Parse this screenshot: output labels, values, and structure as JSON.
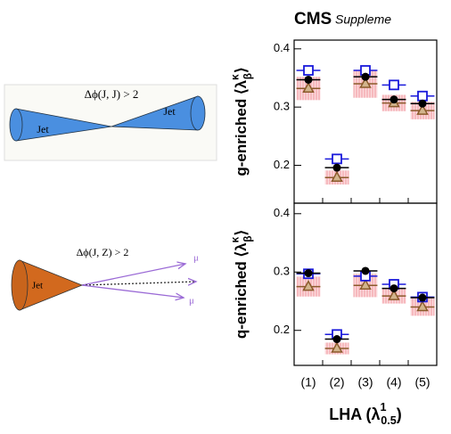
{
  "chart_data": [
    {
      "type": "errorbar",
      "title": "CMS",
      "subtitle": "Suppleme",
      "ylabel": [
        "g-enriched ⟨λ",
        "κ",
        "β",
        "⟩"
      ],
      "categories": [
        null,
        null,
        null,
        null,
        null
      ],
      "ylim": [
        0.135,
        0.415
      ],
      "yticks": [
        0.2,
        0.3,
        0.4
      ],
      "series": [
        {
          "marker": "band",
          "color": "#f2a0a6",
          "values": [
            0.332,
            0.179,
            0.34,
            0.307,
            0.294
          ],
          "errors": [
            0.02,
            0.012,
            0.024,
            0.014,
            0.015
          ]
        },
        {
          "marker": "triangle",
          "color": "#8b5a2b",
          "values": [
            0.332,
            0.179,
            0.34,
            0.307,
            0.294
          ]
        },
        {
          "marker": "square",
          "color": "#1a1adb",
          "values": [
            0.363,
            0.211,
            0.363,
            0.338,
            0.319
          ]
        },
        {
          "marker": "circle",
          "color": "#000000",
          "values": [
            0.347,
            0.196,
            0.352,
            0.313,
            0.306
          ]
        }
      ]
    },
    {
      "type": "errorbar",
      "ylabel": [
        "q-enriched ⟨λ",
        "κ",
        "β",
        "⟩"
      ],
      "xlabel": [
        "LHA (λ",
        "1",
        "0.5",
        ")"
      ],
      "categories": [
        "(1)",
        "(2)",
        "(3)",
        "(4)",
        "(5)"
      ],
      "ylim": [
        0.14,
        0.418
      ],
      "yticks": [
        0.2,
        0.3,
        0.4
      ],
      "series": [
        {
          "marker": "band",
          "color": "#f2a0a6",
          "values": [
            0.275,
            0.169,
            0.277,
            0.259,
            0.24
          ],
          "errors": [
            0.017,
            0.01,
            0.02,
            0.013,
            0.015
          ]
        },
        {
          "marker": "triangle",
          "color": "#8b5a2b",
          "values": [
            0.275,
            0.169,
            0.277,
            0.259,
            0.24
          ]
        },
        {
          "marker": "square",
          "color": "#1a1adb",
          "values": [
            0.297,
            0.193,
            0.293,
            0.279,
            0.257
          ]
        },
        {
          "marker": "circle",
          "color": "#000000",
          "values": [
            0.298,
            0.185,
            0.302,
            0.272,
            0.256
          ]
        }
      ]
    }
  ],
  "diagrams": {
    "dijet": {
      "label": "Δϕ(J, J) > 2",
      "jets": [
        "Jet",
        "Jet"
      ]
    },
    "zjet": {
      "label": "Δϕ(J, Z) > 2",
      "jet": "Jet",
      "muons": [
        "μ",
        "μ"
      ]
    }
  }
}
